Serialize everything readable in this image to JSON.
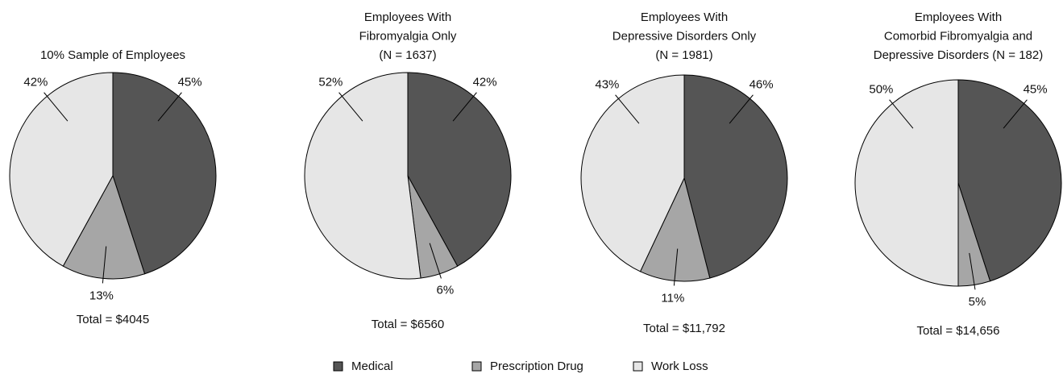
{
  "chart_data": [
    {
      "type": "pie",
      "title": [
        "10% Sample of Employees"
      ],
      "categories": [
        "Medical",
        "Prescription Drug",
        "Work Loss"
      ],
      "values": [
        45,
        13,
        42
      ],
      "value_labels": [
        "45%",
        "13%",
        "42%"
      ],
      "colors": [
        "#555555",
        "#a6a6a6",
        "#e6e6e6"
      ],
      "annotation": "Total = $4045"
    },
    {
      "type": "pie",
      "title": [
        "Employees With",
        "Fibromyalgia Only",
        "(N = 1637)"
      ],
      "categories": [
        "Medical",
        "Prescription Drug",
        "Work Loss"
      ],
      "values": [
        42,
        6,
        52
      ],
      "value_labels": [
        "42%",
        "6%",
        "52%"
      ],
      "colors": [
        "#555555",
        "#a6a6a6",
        "#e6e6e6"
      ],
      "annotation": "Total = $6560"
    },
    {
      "type": "pie",
      "title": [
        "Employees With",
        "Depressive Disorders Only",
        "(N = 1981)"
      ],
      "categories": [
        "Medical",
        "Prescription Drug",
        "Work Loss"
      ],
      "values": [
        46,
        11,
        43
      ],
      "value_labels": [
        "46%",
        "11%",
        "43%"
      ],
      "colors": [
        "#555555",
        "#a6a6a6",
        "#e6e6e6"
      ],
      "annotation": "Total = $11,792"
    },
    {
      "type": "pie",
      "title": [
        "Employees With",
        "Comorbid Fibromyalgia and",
        "Depressive Disorders (N = 182)"
      ],
      "categories": [
        "Medical",
        "Prescription Drug",
        "Work Loss"
      ],
      "values": [
        45,
        5,
        50
      ],
      "value_labels": [
        "45%",
        "5%",
        "50%"
      ],
      "colors": [
        "#555555",
        "#a6a6a6",
        "#e6e6e6"
      ],
      "annotation": "Total = $14,656"
    }
  ]
}
